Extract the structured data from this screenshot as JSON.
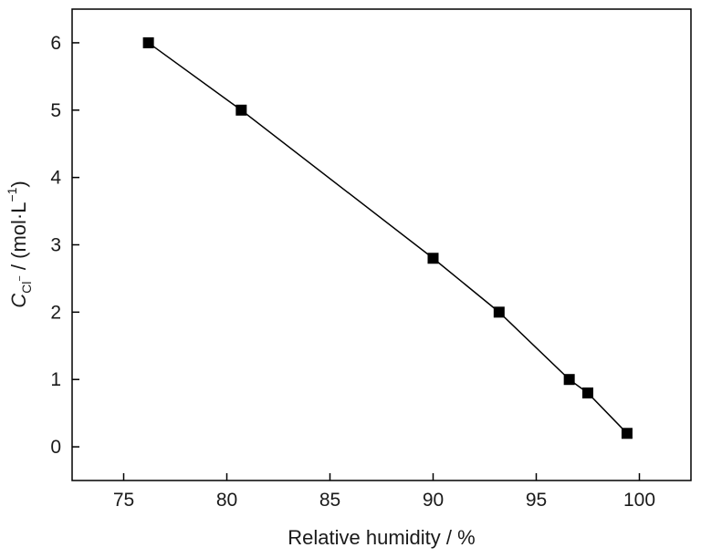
{
  "chart_data": {
    "type": "line",
    "title": "",
    "xlabel": "Relative humidity / %",
    "ylabel": {
      "symbol": "C",
      "subscript": "Cl",
      "subscript_sup": "−",
      "unit_open": " / (mol·L",
      "unit_sup": "−1",
      "unit_close": ")"
    },
    "xlim": [
      72.5,
      102.5
    ],
    "ylim": [
      -0.5,
      6.5
    ],
    "xticks": [
      75,
      80,
      85,
      90,
      95,
      100
    ],
    "yticks": [
      0,
      1,
      2,
      3,
      4,
      5,
      6
    ],
    "grid": false,
    "legend": "none",
    "marker": "square",
    "series": [
      {
        "x": [
          76.2,
          80.7,
          90.0,
          93.2,
          96.6,
          97.5,
          99.4
        ],
        "y": [
          6.0,
          5.0,
          2.8,
          2.0,
          1.0,
          0.8,
          0.2
        ],
        "color": "#000000"
      }
    ]
  }
}
